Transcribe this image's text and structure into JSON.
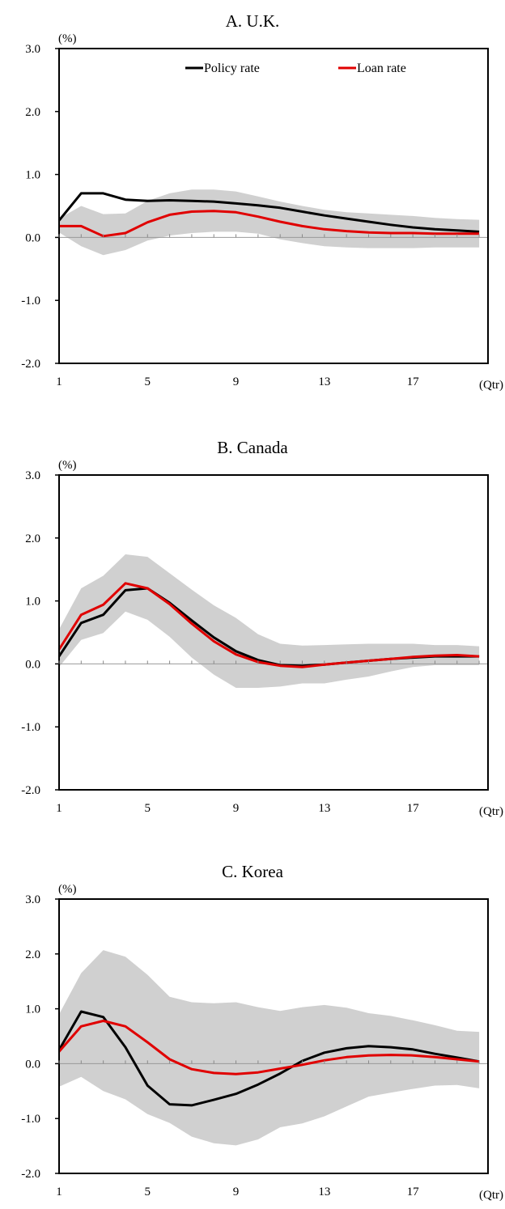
{
  "figure": {
    "series_names": [
      "Policy rate",
      "Loan rate"
    ],
    "colors": {
      "policy": "#000000",
      "loan": "#e00000",
      "band": "#d0d0d0",
      "zero_line": "#999999"
    }
  },
  "chart_data": [
    {
      "type": "line",
      "title": "A. U.K.",
      "ylabel": "(%)",
      "xlabel": "(Qtr)",
      "ylim": [
        -2.0,
        3.0
      ],
      "yticks": [
        "3.0",
        "2.0",
        "1.0",
        "0.0",
        "-1.0",
        "-2.0"
      ],
      "xticks": [
        "1",
        "5",
        "9",
        "13",
        "17"
      ],
      "x": [
        1,
        2,
        3,
        4,
        5,
        6,
        7,
        8,
        9,
        10,
        11,
        12,
        13,
        14,
        15,
        16,
        17,
        18,
        19,
        20
      ],
      "legend": "top-right",
      "series": [
        {
          "name": "Policy rate",
          "color": "#000000",
          "values": [
            0.27,
            0.7,
            0.7,
            0.6,
            0.58,
            0.59,
            0.58,
            0.57,
            0.54,
            0.51,
            0.47,
            0.41,
            0.35,
            0.3,
            0.25,
            0.2,
            0.16,
            0.13,
            0.11,
            0.09
          ]
        },
        {
          "name": "Loan rate",
          "color": "#e00000",
          "values": [
            0.18,
            0.18,
            0.02,
            0.07,
            0.24,
            0.36,
            0.41,
            0.42,
            0.4,
            0.33,
            0.25,
            0.18,
            0.13,
            0.1,
            0.08,
            0.07,
            0.07,
            0.06,
            0.06,
            0.06
          ]
        }
      ],
      "band_upper": [
        0.3,
        0.5,
        0.37,
        0.38,
        0.58,
        0.7,
        0.76,
        0.76,
        0.73,
        0.65,
        0.57,
        0.5,
        0.44,
        0.4,
        0.38,
        0.36,
        0.34,
        0.31,
        0.29,
        0.28
      ],
      "band_lower": [
        0.08,
        -0.14,
        -0.28,
        -0.2,
        -0.05,
        0.03,
        0.07,
        0.09,
        0.09,
        0.06,
        -0.03,
        -0.09,
        -0.14,
        -0.16,
        -0.17,
        -0.17,
        -0.17,
        -0.16,
        -0.16,
        -0.16
      ]
    },
    {
      "type": "line",
      "title": "B. Canada",
      "ylabel": "(%)",
      "xlabel": "(Qtr)",
      "ylim": [
        -2.0,
        3.0
      ],
      "yticks": [
        "3.0",
        "2.0",
        "1.0",
        "0.0",
        "-1.0",
        "-2.0"
      ],
      "xticks": [
        "1",
        "5",
        "9",
        "13",
        "17"
      ],
      "x": [
        1,
        2,
        3,
        4,
        5,
        6,
        7,
        8,
        9,
        10,
        11,
        12,
        13,
        14,
        15,
        16,
        17,
        18,
        19,
        20
      ],
      "series": [
        {
          "name": "Policy rate",
          "color": "#000000",
          "values": [
            0.12,
            0.65,
            0.78,
            1.17,
            1.2,
            0.97,
            0.69,
            0.42,
            0.2,
            0.06,
            -0.02,
            -0.03,
            -0.01,
            0.02,
            0.05,
            0.08,
            0.1,
            0.12,
            0.12,
            0.12
          ]
        },
        {
          "name": "Loan rate",
          "color": "#e00000",
          "values": [
            0.23,
            0.78,
            0.94,
            1.28,
            1.2,
            0.95,
            0.64,
            0.36,
            0.15,
            0.03,
            -0.03,
            -0.05,
            -0.01,
            0.02,
            0.05,
            0.08,
            0.11,
            0.13,
            0.14,
            0.12
          ]
        }
      ],
      "band_upper": [
        0.55,
        1.2,
        1.4,
        1.74,
        1.7,
        1.44,
        1.18,
        0.93,
        0.73,
        0.47,
        0.32,
        0.29,
        0.3,
        0.31,
        0.32,
        0.32,
        0.32,
        0.3,
        0.3,
        0.28
      ],
      "band_lower": [
        -0.05,
        0.38,
        0.49,
        0.83,
        0.7,
        0.43,
        0.1,
        -0.17,
        -0.38,
        -0.38,
        -0.36,
        -0.31,
        -0.31,
        -0.25,
        -0.2,
        -0.12,
        -0.05,
        -0.02,
        -0.02,
        -0.02
      ]
    },
    {
      "type": "line",
      "title": "C. Korea",
      "ylabel": "(%)",
      "xlabel": "(Qtr)",
      "ylim": [
        -2.0,
        3.0
      ],
      "yticks": [
        "3.0",
        "2.0",
        "1.0",
        "0.0",
        "-1.0",
        "-2.0"
      ],
      "xticks": [
        "1",
        "5",
        "9",
        "13",
        "17"
      ],
      "x": [
        1,
        2,
        3,
        4,
        5,
        6,
        7,
        8,
        9,
        10,
        11,
        12,
        13,
        14,
        15,
        16,
        17,
        18,
        19,
        20
      ],
      "series": [
        {
          "name": "Policy rate",
          "color": "#000000",
          "values": [
            0.25,
            0.95,
            0.85,
            0.3,
            -0.4,
            -0.74,
            -0.76,
            -0.66,
            -0.55,
            -0.38,
            -0.18,
            0.05,
            0.2,
            0.28,
            0.32,
            0.3,
            0.26,
            0.18,
            0.11,
            0.04
          ]
        },
        {
          "name": "Loan rate",
          "color": "#e00000",
          "values": [
            0.22,
            0.68,
            0.78,
            0.68,
            0.39,
            0.08,
            -0.1,
            -0.17,
            -0.19,
            -0.16,
            -0.09,
            -0.02,
            0.06,
            0.12,
            0.15,
            0.16,
            0.15,
            0.12,
            0.08,
            0.04
          ]
        }
      ],
      "band_upper": [
        0.9,
        1.65,
        2.07,
        1.95,
        1.62,
        1.22,
        1.12,
        1.1,
        1.12,
        1.03,
        0.96,
        1.03,
        1.07,
        1.02,
        0.92,
        0.87,
        0.79,
        0.7,
        0.6,
        0.58
      ],
      "band_lower": [
        -0.42,
        -0.24,
        -0.5,
        -0.65,
        -0.92,
        -1.08,
        -1.33,
        -1.45,
        -1.49,
        -1.38,
        -1.16,
        -1.09,
        -0.96,
        -0.78,
        -0.6,
        -0.53,
        -0.46,
        -0.4,
        -0.39,
        -0.45
      ]
    }
  ]
}
